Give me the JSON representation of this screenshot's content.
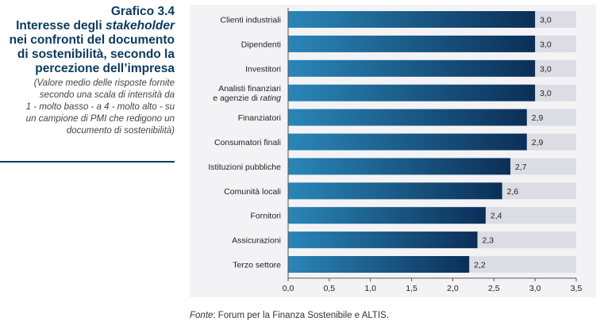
{
  "figure": {
    "number": "Grafico 3.4",
    "title_lines": [
      [
        {
          "t": "Interesse degli "
        },
        {
          "t": "stakeholder",
          "i": true
        }
      ],
      [
        {
          "t": "nei confronti del documento"
        }
      ],
      [
        {
          "t": "di sostenibilità, secondo la"
        }
      ],
      [
        {
          "t": "percezione dell’impresa"
        }
      ]
    ],
    "subtitle_lines": [
      "(Valore medio delle risposte fornite",
      "secondo una scala di intensità da",
      "1 - molto basso - a 4 - molto alto - su",
      "un campione di PMI che redigono un",
      "documento di sostenibilità)"
    ]
  },
  "source": {
    "prefix": "Fonte",
    "text": ": Forum per la Finanza Sostenibile e ALTIS."
  },
  "chart_data": {
    "type": "bar",
    "orientation": "horizontal",
    "categories": [
      [
        {
          "t": "Clienti industriali"
        }
      ],
      [
        {
          "t": "Dipendenti"
        }
      ],
      [
        {
          "t": "Investitori"
        }
      ],
      [
        {
          "t": "Analisti finanziari"
        },
        {
          "t": "e agenzie di "
        },
        {
          "t": "rating",
          "i": true
        }
      ],
      [
        {
          "t": "Finanziatori"
        }
      ],
      [
        {
          "t": "Consumatori finali"
        }
      ],
      [
        {
          "t": "Istituzioni pubbliche"
        }
      ],
      [
        {
          "t": "Comunità locali"
        }
      ],
      [
        {
          "t": "Fornitori"
        }
      ],
      [
        {
          "t": "Assicurazioni"
        }
      ],
      [
        {
          "t": "Terzo settore"
        }
      ]
    ],
    "values": [
      3.0,
      3.0,
      3.0,
      3.0,
      2.9,
      2.9,
      2.7,
      2.6,
      2.4,
      2.3,
      2.2
    ],
    "value_labels": [
      "3,0",
      "3,0",
      "3,0",
      "3,0",
      "2,9",
      "2,9",
      "2,7",
      "2,6",
      "2,4",
      "2,3",
      "2,2"
    ],
    "xlim": [
      0,
      3.5
    ],
    "xticks": [
      0,
      0.5,
      1.0,
      1.5,
      2.0,
      2.5,
      3.0,
      3.5
    ],
    "xtick_labels": [
      "0,0",
      "0,5",
      "1,0",
      "1,5",
      "2,0",
      "2,5",
      "3,0",
      "3,5"
    ],
    "colors": {
      "bar_start": "#2a86b8",
      "bar_end": "#0b2f57",
      "track": "#dcdde4",
      "axis": "#555555",
      "panel": "#f3f3f6"
    }
  }
}
